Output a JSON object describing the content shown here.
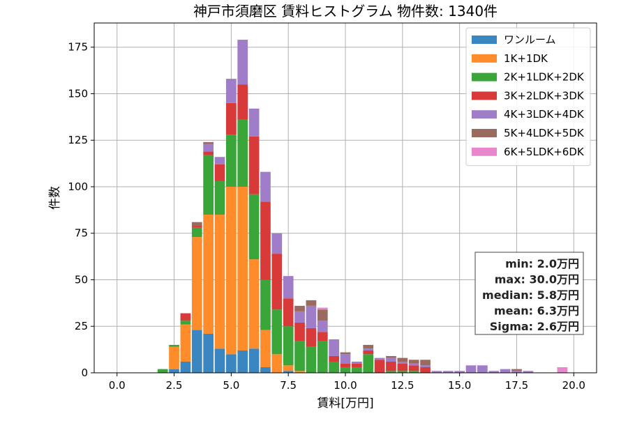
{
  "chart_data": {
    "type": "bar",
    "stacked": true,
    "title": "神戸市須磨区 賃料ヒストグラム  物件数: 1340件",
    "xlabel": "賃料[万円]",
    "ylabel": "件数",
    "xlim": [
      -1.0,
      21.0
    ],
    "ylim": [
      0,
      188
    ],
    "xticks": [
      0.0,
      2.5,
      5.0,
      7.5,
      10.0,
      12.5,
      15.0,
      17.5,
      20.0
    ],
    "xtick_labels": [
      "0.0",
      "2.5",
      "5.0",
      "7.5",
      "10.0",
      "12.5",
      "15.0",
      "17.5",
      "20.0"
    ],
    "yticks": [
      0,
      25,
      50,
      75,
      100,
      125,
      150,
      175
    ],
    "ytick_labels": [
      "0",
      "25",
      "50",
      "75",
      "100",
      "125",
      "150",
      "175"
    ],
    "grid": true,
    "bin_width": 0.5,
    "bin_starts": [
      1.75,
      2.25,
      2.75,
      3.25,
      3.75,
      4.25,
      4.75,
      5.25,
      5.75,
      6.25,
      6.75,
      7.25,
      7.75,
      8.25,
      8.75,
      9.25,
      9.75,
      10.25,
      10.75,
      11.25,
      11.75,
      12.25,
      12.75,
      13.25,
      13.75,
      14.25,
      14.75,
      15.25,
      15.75,
      16.25,
      16.75,
      17.25,
      17.75,
      18.25,
      18.75,
      19.25
    ],
    "series": [
      {
        "name": "ワンルーム",
        "color": "#3a86c0",
        "values": [
          0,
          2,
          6,
          23,
          21,
          13,
          10,
          12,
          13,
          3,
          0,
          1,
          0,
          0,
          0,
          0,
          0,
          0,
          0,
          0,
          0,
          0,
          0,
          0,
          0,
          0,
          0,
          0,
          0,
          0,
          0,
          0,
          0,
          0,
          0,
          0
        ]
      },
      {
        "name": "1K+1DK",
        "color": "#ff8c2a",
        "values": [
          0,
          12,
          20,
          50,
          64,
          72,
          90,
          88,
          48,
          20,
          10,
          3,
          1,
          0,
          0,
          0,
          0,
          0,
          0,
          0,
          0,
          0,
          0,
          0,
          0,
          0,
          0,
          0,
          0,
          0,
          0,
          0,
          0,
          0,
          0,
          0
        ]
      },
      {
        "name": "2K+1LDK+2DK",
        "color": "#3aa63a",
        "values": [
          2,
          1,
          2,
          5,
          32,
          18,
          28,
          36,
          35,
          27,
          24,
          21,
          16,
          14,
          17,
          6,
          3,
          3,
          10,
          0,
          1,
          1,
          1,
          0,
          0,
          0,
          0,
          0,
          0,
          0,
          0,
          0,
          0,
          0,
          0,
          0
        ]
      },
      {
        "name": "3K+2LDK+3DK",
        "color": "#d83a3a",
        "values": [
          0,
          0,
          4,
          1,
          2,
          9,
          17,
          19,
          31,
          42,
          30,
          15,
          10,
          10,
          5,
          3,
          2,
          2,
          2,
          7,
          5,
          4,
          3,
          3,
          0,
          0,
          0,
          0,
          0,
          0,
          0,
          0,
          0,
          0,
          0,
          0
        ]
      },
      {
        "name": "4K+3LDK+4DK",
        "color": "#a07dc8",
        "values": [
          0,
          0,
          0,
          0,
          4,
          4,
          13,
          24,
          15,
          16,
          11,
          12,
          6,
          12,
          6,
          9,
          5,
          1,
          1,
          1,
          2,
          1,
          1,
          1,
          1,
          1,
          1,
          4,
          4,
          1,
          2,
          1,
          1,
          0,
          0,
          0
        ]
      },
      {
        "name": "5K+4LDK+5DK",
        "color": "#9a6a5e",
        "values": [
          0,
          0,
          0,
          2,
          1,
          0,
          0,
          0,
          0,
          0,
          0,
          0,
          3,
          3,
          6,
          0,
          1,
          0,
          2,
          0,
          1,
          2,
          2,
          3,
          0,
          0,
          0,
          0,
          0,
          0,
          0,
          1,
          0,
          0,
          0,
          0
        ]
      },
      {
        "name": "6K+5LDK+6DK",
        "color": "#e887cc",
        "values": [
          0,
          0,
          0,
          0,
          0,
          0,
          0,
          0,
          0,
          0,
          0,
          0,
          0,
          0,
          1,
          0,
          0,
          0,
          0,
          0,
          0,
          0,
          0,
          0,
          0,
          0,
          0,
          0,
          0,
          0,
          0,
          0,
          0,
          0,
          0,
          3
        ]
      }
    ],
    "legend_position": "top-right",
    "annotations": [
      "min: 2.0万円",
      "max: 30.0万円",
      "median: 5.8万円",
      "mean: 6.3万円",
      "Sigma: 2.6万円"
    ]
  }
}
